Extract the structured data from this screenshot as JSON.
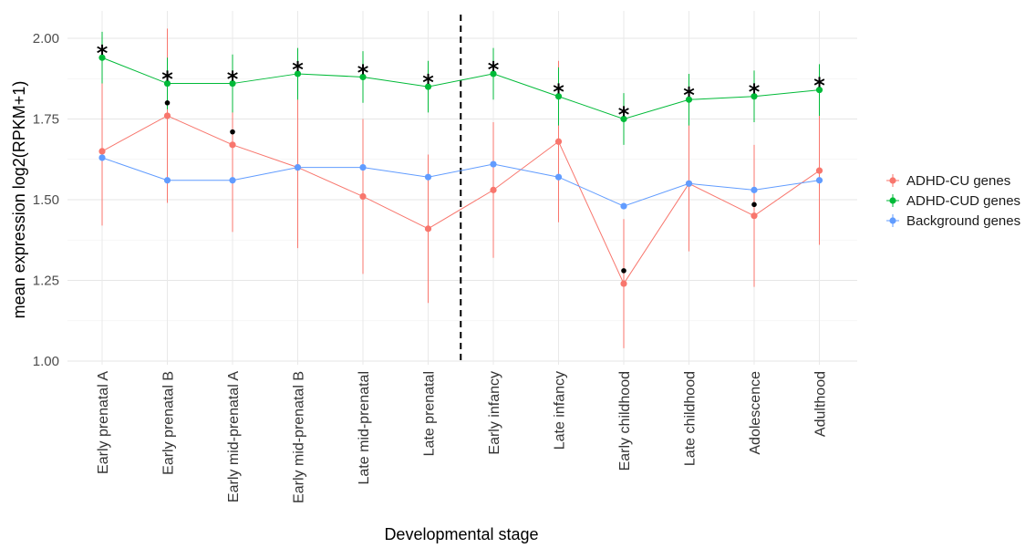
{
  "chart_data": {
    "type": "line",
    "xlabel": "Developmental stage",
    "ylabel": "mean expression log2(RPKM+1)",
    "ylim": [
      1.0,
      2.05
    ],
    "yticks": [
      "1.00",
      "1.25",
      "1.50",
      "1.75",
      "2.00"
    ],
    "ytick_values": [
      1.0,
      1.25,
      1.5,
      1.75,
      2.0
    ],
    "grid": true,
    "legend_position": "right",
    "categories": [
      "Early prenatal A",
      "Early prenatal B",
      "Early mid-prenatal A",
      "Early mid-prenatal B",
      "Late mid-prenatal",
      "Late prenatal",
      "Early infancy",
      "Late infancy",
      "Early childhood",
      "Late childhood",
      "Adolescence",
      "Adulthood"
    ],
    "divider_after_index": 5,
    "series": [
      {
        "name": "ADHD-CU genes",
        "color": "#F8766D",
        "values": [
          1.65,
          1.76,
          1.67,
          1.6,
          1.51,
          1.41,
          1.53,
          1.68,
          1.24,
          1.55,
          1.45,
          1.59
        ],
        "lower": [
          1.42,
          1.49,
          1.4,
          1.35,
          1.27,
          1.18,
          1.32,
          1.43,
          1.04,
          1.34,
          1.23,
          1.36
        ],
        "upper": [
          1.88,
          2.03,
          1.94,
          1.85,
          1.75,
          1.64,
          1.74,
          1.93,
          1.44,
          1.76,
          1.67,
          1.82
        ]
      },
      {
        "name": "ADHD-CUD genes",
        "color": "#00BA38",
        "values": [
          1.94,
          1.86,
          1.86,
          1.89,
          1.88,
          1.85,
          1.89,
          1.82,
          1.75,
          1.81,
          1.82,
          1.84
        ],
        "lower": [
          1.86,
          1.78,
          1.77,
          1.81,
          1.8,
          1.77,
          1.81,
          1.73,
          1.67,
          1.73,
          1.74,
          1.76
        ],
        "upper": [
          2.02,
          1.94,
          1.95,
          1.97,
          1.96,
          1.93,
          1.97,
          1.91,
          1.83,
          1.89,
          1.9,
          1.92
        ]
      },
      {
        "name": "Background genes",
        "color": "#619CFF",
        "values": [
          1.63,
          1.56,
          1.56,
          1.6,
          1.6,
          1.57,
          1.61,
          1.57,
          1.48,
          1.55,
          1.53,
          1.56
        ],
        "lower": [
          1.63,
          1.56,
          1.56,
          1.6,
          1.6,
          1.57,
          1.61,
          1.57,
          1.48,
          1.55,
          1.53,
          1.56
        ],
        "upper": [
          1.63,
          1.56,
          1.56,
          1.6,
          1.6,
          1.57,
          1.61,
          1.57,
          1.48,
          1.55,
          1.53,
          1.56
        ]
      }
    ],
    "significance_stars": {
      "symbol": "*",
      "y": [
        1.97,
        1.89,
        1.89,
        1.92,
        1.91,
        1.88,
        1.92,
        1.85,
        1.78,
        1.84,
        1.85,
        1.87
      ]
    },
    "significance_dots": [
      {
        "index": 1,
        "y": 1.8
      },
      {
        "index": 2,
        "y": 1.71
      },
      {
        "index": 8,
        "y": 1.28
      },
      {
        "index": 10,
        "y": 1.485
      }
    ]
  }
}
